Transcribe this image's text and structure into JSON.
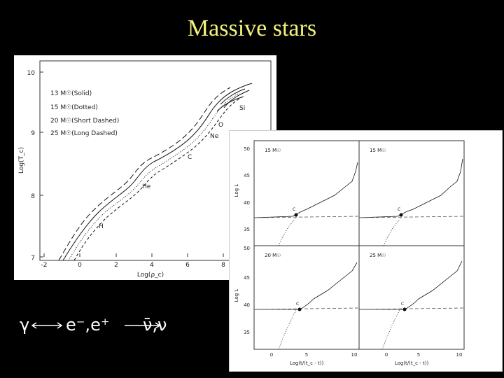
{
  "slide": {
    "title": "Massive stars"
  },
  "figure_main": {
    "ylabel": "Log(T_c)",
    "xlabel": "Log(ρ_c)",
    "y_ticks": [
      "10",
      "9",
      "8",
      "7"
    ],
    "x_ticks": [
      "-2",
      "0",
      "2",
      "4",
      "6",
      "8"
    ],
    "legend": [
      "13 M☉(Solid)",
      "15 M☉(Dotted)",
      "20 M☉(Short Dashed)",
      "25 M☉(Long Dashed)"
    ],
    "labels": {
      "h": "H",
      "he": "He",
      "c": "C",
      "ne": "Ne",
      "o": "O",
      "si": "Si"
    }
  },
  "figure_panels": {
    "ylabel": "Log L",
    "xlabel": "Log(t/(t_c - t))",
    "y_ticks_top": [
      "50",
      "45",
      "40",
      "35"
    ],
    "y_ticks_bottom": [
      "50",
      "45",
      "40",
      "35"
    ],
    "x_ticks": [
      "0",
      "5",
      "10"
    ],
    "panels": [
      {
        "mass": "15 M☉",
        "marker": "C"
      },
      {
        "mass": "15 M☉",
        "marker": "C"
      },
      {
        "mass": "20 M☉",
        "marker": "C"
      },
      {
        "mass": "25 M☉",
        "marker": "C"
      }
    ]
  },
  "reaction": {
    "gamma": "γ",
    "pair": "e⁻,e⁺",
    "neutrinos": "ν̄,ν"
  }
}
